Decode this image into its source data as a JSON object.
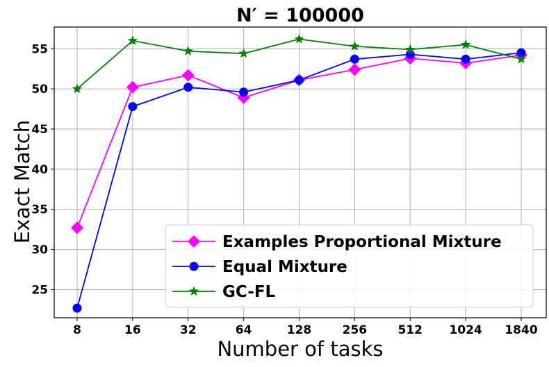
{
  "chart_data": {
    "type": "line",
    "title": "N′ = 100000",
    "xlabel": "Number of tasks",
    "ylabel": "Exact Match",
    "categories": [
      "8",
      "16",
      "32",
      "64",
      "128",
      "256",
      "512",
      "1024",
      "1840"
    ],
    "ylim": [
      21.5,
      57.7
    ],
    "yticks": [
      25,
      30,
      35,
      40,
      45,
      50,
      55
    ],
    "grid": true,
    "legend_position": "lower-right",
    "series": [
      {
        "name": "Examples Proportional Mixture",
        "color": "#ff00ff",
        "marker": "diamond",
        "values": [
          32.7,
          50.2,
          51.7,
          48.9,
          51.1,
          52.4,
          53.8,
          53.2,
          54.2
        ]
      },
      {
        "name": "Equal Mixture",
        "color": "#0000ff",
        "marker": "circle",
        "values": [
          22.7,
          47.8,
          50.2,
          49.6,
          51.1,
          53.7,
          54.3,
          53.7,
          54.5
        ]
      },
      {
        "name": "GC-FL",
        "color": "#008000",
        "marker": "star",
        "values": [
          50.0,
          56.0,
          54.7,
          54.4,
          56.2,
          55.3,
          54.9,
          55.5,
          53.7
        ]
      }
    ]
  }
}
